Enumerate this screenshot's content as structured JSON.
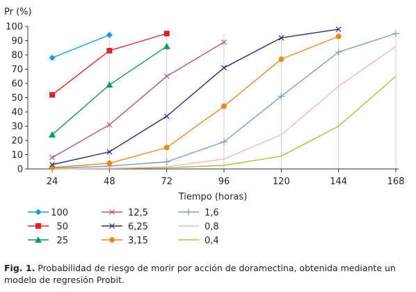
{
  "chart_data": {
    "type": "line",
    "ylabel": "Pr (%)",
    "xlabel": "Tiempo (horas)",
    "x": [
      24,
      48,
      72,
      96,
      120,
      144,
      168
    ],
    "xlim": [
      24,
      168
    ],
    "ylim": [
      0,
      100
    ],
    "yticks": [
      0,
      10,
      20,
      30,
      40,
      50,
      60,
      70,
      80,
      90,
      100
    ],
    "grid": "vertical",
    "legend_placement": "bottom",
    "series": [
      {
        "name": "100",
        "color": "#1b9bd8",
        "marker": "diamond",
        "x": [
          24,
          48
        ],
        "values": [
          78,
          94
        ]
      },
      {
        "name": "50",
        "color": "#d9232e",
        "marker": "square",
        "x": [
          24,
          48,
          72
        ],
        "values": [
          52,
          83,
          95
        ]
      },
      {
        "name": "25",
        "color": "#139a5a",
        "marker": "triangle",
        "x": [
          24,
          48,
          72
        ],
        "values": [
          24,
          59,
          86
        ]
      },
      {
        "name": "12,5",
        "color": "#a8538f",
        "marker": "x",
        "x": [
          24,
          48,
          72,
          96
        ],
        "values": [
          8,
          31,
          65,
          89
        ]
      },
      {
        "name": "6,25",
        "color": "#2e2a6e",
        "marker": "x",
        "x": [
          24,
          48,
          72,
          96,
          120,
          144
        ],
        "values": [
          3,
          12,
          37,
          71,
          92,
          98
        ]
      },
      {
        "name": "3,15",
        "color": "#e88a22",
        "marker": "circle",
        "x": [
          24,
          48,
          72,
          96,
          120,
          144
        ],
        "values": [
          1,
          4,
          15,
          44,
          77,
          93
        ]
      },
      {
        "name": "1,6",
        "color": "#7f9cc4",
        "marker": "plus",
        "x": [
          24,
          48,
          72,
          96,
          120,
          144,
          168
        ],
        "values": [
          0.5,
          2,
          5,
          19,
          51,
          82,
          95
        ]
      },
      {
        "name": "0,8",
        "color": "#f3b6c6",
        "marker": "none",
        "x": [
          24,
          48,
          72,
          96,
          120,
          144,
          168
        ],
        "values": [
          0.2,
          0.5,
          1.5,
          7,
          24,
          58,
          86
        ]
      },
      {
        "name": "0,4",
        "color": "#9ec73d",
        "marker": "none",
        "x": [
          24,
          48,
          72,
          96,
          120,
          144,
          168
        ],
        "values": [
          0,
          0.3,
          0.8,
          2.5,
          9,
          30,
          65
        ]
      }
    ]
  },
  "caption": {
    "label": "Fig. 1.",
    "text": " Probabilidad de riesgo de morir por acción de doramectina, obtenida mediante un modelo de regresión Probit."
  }
}
